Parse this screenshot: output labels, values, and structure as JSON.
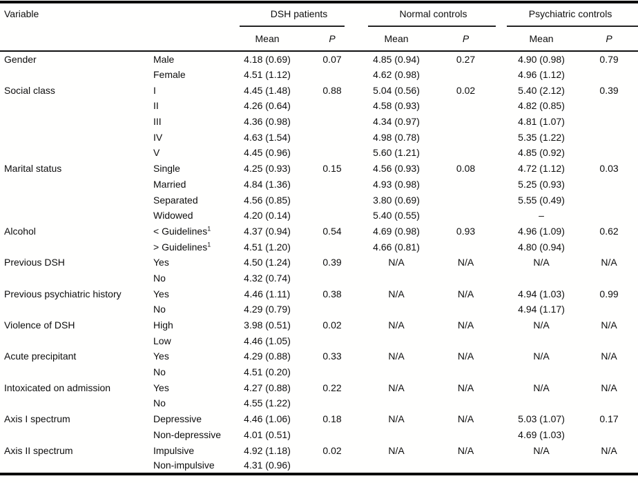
{
  "header": {
    "variable_label": "Variable",
    "groups": [
      {
        "label": "DSH patients",
        "mean_label": "Mean",
        "p_label": "P"
      },
      {
        "label": "Normal controls",
        "mean_label": "Mean",
        "p_label": "P"
      },
      {
        "label": "Psychiatric controls",
        "mean_label": "Mean",
        "p_label": "P"
      }
    ]
  },
  "colors": {
    "text": "#0d0d0d",
    "rule": "#0a0a0a",
    "background": "#ffffff"
  },
  "rows": [
    {
      "variable": "Gender",
      "category": "Male",
      "values": [
        "4.18 (0.69)",
        "0.07",
        "4.85 (0.94)",
        "0.27",
        "4.90 (0.98)",
        "0.79"
      ]
    },
    {
      "variable": "",
      "category": "Female",
      "values": [
        "4.51 (1.12)",
        "",
        "4.62 (0.98)",
        "",
        "4.96 (1.12)",
        ""
      ]
    },
    {
      "variable": "Social class",
      "category": "I",
      "values": [
        "4.45 (1.48)",
        "0.88",
        "5.04 (0.56)",
        "0.02",
        "5.40 (2.12)",
        "0.39"
      ]
    },
    {
      "variable": "",
      "category": "II",
      "values": [
        "4.26 (0.64)",
        "",
        "4.58 (0.93)",
        "",
        "4.82 (0.85)",
        ""
      ]
    },
    {
      "variable": "",
      "category": "III",
      "values": [
        "4.36 (0.98)",
        "",
        "4.34 (0.97)",
        "",
        "4.81 (1.07)",
        ""
      ]
    },
    {
      "variable": "",
      "category": "IV",
      "values": [
        "4.63 (1.54)",
        "",
        "4.98 (0.78)",
        "",
        "5.35 (1.22)",
        ""
      ]
    },
    {
      "variable": "",
      "category": "V",
      "values": [
        "4.45 (0.96)",
        "",
        "5.60 (1.21)",
        "",
        "4.85 (0.92)",
        ""
      ]
    },
    {
      "variable": "Marital status",
      "category": "Single",
      "values": [
        "4.25 (0.93)",
        "0.15",
        "4.56 (0.93)",
        "0.08",
        "4.72 (1.12)",
        "0.03"
      ]
    },
    {
      "variable": "",
      "category": "Married",
      "values": [
        "4.84 (1.36)",
        "",
        "4.93 (0.98)",
        "",
        "5.25 (0.93)",
        ""
      ]
    },
    {
      "variable": "",
      "category": "Separated",
      "values": [
        "4.56 (0.85)",
        "",
        "3.80 (0.69)",
        "",
        "5.55 (0.49)",
        ""
      ]
    },
    {
      "variable": "",
      "category": "Widowed",
      "values": [
        "4.20 (0.14)",
        "",
        "5.40 (0.55)",
        "",
        "–",
        ""
      ]
    },
    {
      "variable": "Alcohol",
      "category": "< Guidelines",
      "category_sup": "1",
      "values": [
        "4.37 (0.94)",
        "0.54",
        "4.69 (0.98)",
        "0.93",
        "4.96 (1.09)",
        "0.62"
      ]
    },
    {
      "variable": "",
      "category": "> Guidelines",
      "category_sup": "1",
      "values": [
        "4.51 (1.20)",
        "",
        "4.66 (0.81)",
        "",
        "4.80 (0.94)",
        ""
      ]
    },
    {
      "variable": "Previous DSH",
      "category": "Yes",
      "values": [
        "4.50 (1.24)",
        "0.39",
        "N/A",
        "N/A",
        "N/A",
        "N/A"
      ]
    },
    {
      "variable": "",
      "category": "No",
      "values": [
        "4.32 (0.74)",
        "",
        "",
        "",
        "",
        ""
      ]
    },
    {
      "variable": "Previous psychiatric history",
      "category": "Yes",
      "values": [
        "4.46 (1.11)",
        "0.38",
        "N/A",
        "N/A",
        "4.94 (1.03)",
        "0.99"
      ]
    },
    {
      "variable": "",
      "category": "No",
      "values": [
        "4.29 (0.79)",
        "",
        "",
        "",
        "4.94 (1.17)",
        ""
      ]
    },
    {
      "variable": "Violence of DSH",
      "category": "High",
      "values": [
        "3.98 (0.51)",
        "0.02",
        "N/A",
        "N/A",
        "N/A",
        "N/A"
      ]
    },
    {
      "variable": "",
      "category": "Low",
      "values": [
        "4.46 (1.05)",
        "",
        "",
        "",
        "",
        ""
      ]
    },
    {
      "variable": "Acute precipitant",
      "category": "Yes",
      "values": [
        "4.29 (0.88)",
        "0.33",
        "N/A",
        "N/A",
        "N/A",
        "N/A"
      ]
    },
    {
      "variable": "",
      "category": "No",
      "values": [
        "4.51 (0.20)",
        "",
        "",
        "",
        "",
        ""
      ]
    },
    {
      "variable": "Intoxicated on admission",
      "category": "Yes",
      "values": [
        "4.27 (0.88)",
        "0.22",
        "N/A",
        "N/A",
        "N/A",
        "N/A"
      ]
    },
    {
      "variable": "",
      "category": "No",
      "values": [
        "4.55 (1.22)",
        "",
        "",
        "",
        "",
        ""
      ]
    },
    {
      "variable": "Axis I spectrum",
      "category": "Depressive",
      "values": [
        "4.46 (1.06)",
        "0.18",
        "N/A",
        "N/A",
        "5.03 (1.07)",
        "0.17"
      ]
    },
    {
      "variable": "",
      "category": "Non-depressive",
      "values": [
        "4.01 (0.51)",
        "",
        "",
        "",
        "4.69 (1.03)",
        ""
      ]
    },
    {
      "variable": "Axis II spectrum",
      "category": "Impulsive",
      "values": [
        "4.92 (1.18)",
        "0.02",
        "N/A",
        "N/A",
        "N/A",
        "N/A"
      ]
    },
    {
      "variable": "",
      "category": "Non-impulsive",
      "values": [
        "4.31 (0.96)",
        "",
        "",
        "",
        "",
        ""
      ]
    }
  ]
}
